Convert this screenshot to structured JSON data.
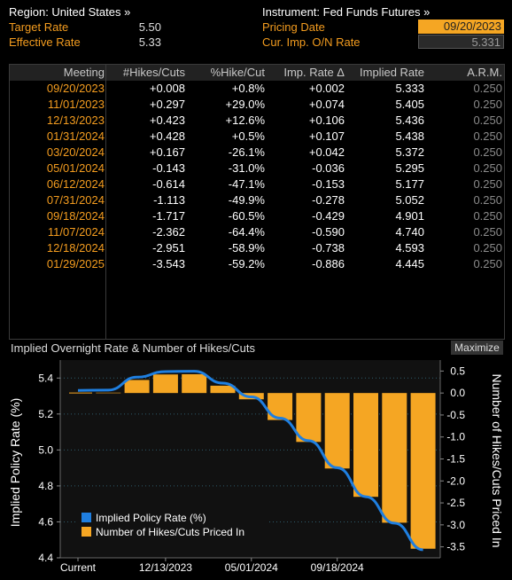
{
  "header": {
    "region": "Region: United States »",
    "instrument": "Instrument: Fed Funds Futures »",
    "target_rate_label": "Target Rate",
    "target_rate_value": "5.50",
    "effective_rate_label": "Effective Rate",
    "effective_rate_value": "5.33",
    "pricing_date_label": "Pricing Date",
    "pricing_date_value": "09/20/2023",
    "cur_imp_label": "Cur. Imp. O/N Rate",
    "cur_imp_value": "5.331"
  },
  "table": {
    "columns": [
      "Meeting",
      "#Hikes/Cuts",
      "%Hike/Cut",
      "Imp. Rate Δ",
      "Implied Rate",
      "A.R.M."
    ],
    "rows": [
      [
        "09/20/2023",
        "+0.008",
        "+0.8%",
        "+0.002",
        "5.333",
        "0.250"
      ],
      [
        "11/01/2023",
        "+0.297",
        "+29.0%",
        "+0.074",
        "5.405",
        "0.250"
      ],
      [
        "12/13/2023",
        "+0.423",
        "+12.6%",
        "+0.106",
        "5.436",
        "0.250"
      ],
      [
        "01/31/2024",
        "+0.428",
        "+0.5%",
        "+0.107",
        "5.438",
        "0.250"
      ],
      [
        "03/20/2024",
        "+0.167",
        "-26.1%",
        "+0.042",
        "5.372",
        "0.250"
      ],
      [
        "05/01/2024",
        "-0.143",
        "-31.0%",
        "-0.036",
        "5.295",
        "0.250"
      ],
      [
        "06/12/2024",
        "-0.614",
        "-47.1%",
        "-0.153",
        "5.177",
        "0.250"
      ],
      [
        "07/31/2024",
        "-1.113",
        "-49.9%",
        "-0.278",
        "5.052",
        "0.250"
      ],
      [
        "09/18/2024",
        "-1.717",
        "-60.5%",
        "-0.429",
        "4.901",
        "0.250"
      ],
      [
        "11/07/2024",
        "-2.362",
        "-64.4%",
        "-0.590",
        "4.740",
        "0.250"
      ],
      [
        "12/18/2024",
        "-2.951",
        "-58.9%",
        "-0.738",
        "4.593",
        "0.250"
      ],
      [
        "01/29/2025",
        "-3.543",
        "-59.2%",
        "-0.886",
        "4.445",
        "0.250"
      ]
    ]
  },
  "chart": {
    "title": "Implied Overnight Rate & Number of Hikes/Cuts",
    "maximize_label": "Maximize",
    "colors": {
      "line": "#1f7fe0",
      "bars": "#f5a623",
      "grid": "#2e5a6a",
      "text": "#ffffff",
      "plot_bg": "#111111"
    }
  },
  "chart_data": {
    "type": "bar",
    "categories": [
      "Current",
      "09/20/2023",
      "11/01/2023",
      "12/13/2023",
      "01/31/2024",
      "03/20/2024",
      "05/01/2024",
      "06/12/2024",
      "07/31/2024",
      "09/18/2024",
      "11/07/2024",
      "12/18/2024",
      "01/29/2025"
    ],
    "x_tick_labels": [
      "Current",
      "12/13/2023",
      "05/01/2024",
      "09/18/2024"
    ],
    "series": [
      {
        "name": "Implied Policy Rate (%)",
        "type": "line",
        "axis": "left",
        "values": [
          5.331,
          5.333,
          5.405,
          5.436,
          5.438,
          5.372,
          5.295,
          5.177,
          5.052,
          4.901,
          4.74,
          4.593,
          4.445
        ]
      },
      {
        "name": "Number of Hikes/Cuts Priced In",
        "type": "bar",
        "axis": "right",
        "values": [
          0,
          0.008,
          0.297,
          0.423,
          0.428,
          0.167,
          -0.143,
          -0.614,
          -1.113,
          -1.717,
          -2.362,
          -2.951,
          -3.543
        ]
      }
    ],
    "ylabel_left": "Implied Policy Rate (%)",
    "ylabel_right": "Number of Hikes/Cuts Priced In",
    "ylim_left": [
      4.4,
      5.5
    ],
    "ylim_right": [
      -3.75,
      0.75
    ],
    "yticks_left": [
      4.4,
      4.6,
      4.8,
      5.0,
      5.2,
      5.4
    ],
    "yticks_right": [
      0.5,
      0,
      -0.5,
      -1,
      -1.5,
      -2,
      -2.5,
      -3,
      -3.5
    ],
    "ytick_labels_left": [
      "4.4",
      "4.6",
      "4.8",
      "5.0",
      "5.2",
      "5.4"
    ],
    "ytick_labels_right": [
      "0.5",
      "0.0",
      "-0.5",
      "-1.0",
      "-1.5",
      "-2.0",
      "-2.5",
      "-3.0",
      "-3.5"
    ],
    "grid": true,
    "legend_position": "bottom-left"
  }
}
